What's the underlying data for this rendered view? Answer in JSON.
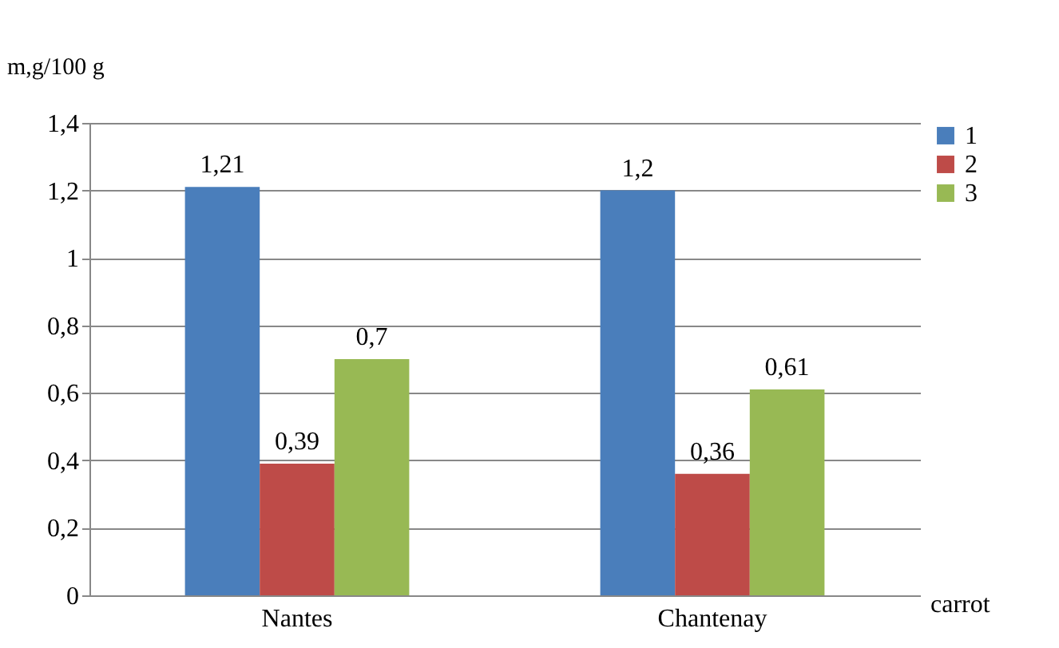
{
  "chart_data": {
    "type": "bar",
    "ylabel": "m,g/100 g",
    "xlabel": "carrot",
    "categories": [
      "Nantes",
      "Chantenay"
    ],
    "series": [
      {
        "name": "1",
        "color": "#4a7ebb",
        "values": [
          1.21,
          1.2
        ],
        "value_labels": [
          "1,21",
          "1,2"
        ]
      },
      {
        "name": "2",
        "color": "#be4b48",
        "values": [
          0.39,
          0.36
        ],
        "value_labels": [
          "0,39",
          "0,36"
        ]
      },
      {
        "name": "3",
        "color": "#98b954",
        "values": [
          0.7,
          0.61
        ],
        "value_labels": [
          "0,7",
          "0,61"
        ]
      }
    ],
    "ylim": [
      0,
      1.4
    ],
    "yticks": [
      {
        "value": 0,
        "label": "0"
      },
      {
        "value": 0.2,
        "label": "0,2"
      },
      {
        "value": 0.4,
        "label": "0,4"
      },
      {
        "value": 0.6,
        "label": "0,6"
      },
      {
        "value": 0.8,
        "label": "0,8"
      },
      {
        "value": 1,
        "label": "1"
      },
      {
        "value": 1.2,
        "label": "1,2"
      },
      {
        "value": 1.4,
        "label": "1,4"
      }
    ],
    "grid": "y",
    "legend": "right"
  }
}
